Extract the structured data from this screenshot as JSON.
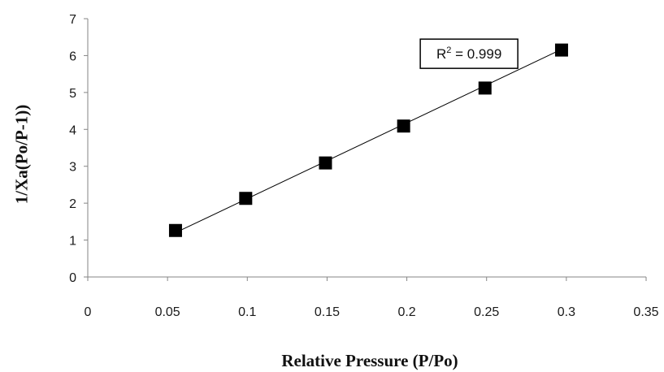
{
  "chart_data": {
    "type": "scatter",
    "title": "",
    "xlabel": "Relative Pressure (P/Po)",
    "ylabel": "1/Xa(Po/P-1))",
    "xlim": [
      0,
      0.35
    ],
    "ylim": [
      0,
      7
    ],
    "x_ticks": [
      "0",
      "0.05",
      "0.1",
      "0.15",
      "0.2",
      "0.25",
      "0.3",
      "0.35"
    ],
    "y_ticks": [
      "0",
      "1",
      "2",
      "3",
      "4",
      "5",
      "6",
      "7"
    ],
    "grid": false,
    "series": [
      {
        "x": [
          0.055,
          0.099,
          0.149,
          0.198,
          0.249,
          0.297
        ],
        "y": [
          1.26,
          2.13,
          3.09,
          4.09,
          5.12,
          6.15
        ],
        "marker": "square",
        "color": "#000000"
      }
    ],
    "trendline": {
      "type": "linear",
      "x_start": 0.055,
      "x_end": 0.297,
      "y_start": 1.2,
      "y_end": 6.17
    },
    "annotation": {
      "r2_prefix": "R",
      "r2_sup": "2",
      "r2_suffix": " = 0.999",
      "anchor_x": 0.239,
      "anchor_y": 6.05
    }
  }
}
